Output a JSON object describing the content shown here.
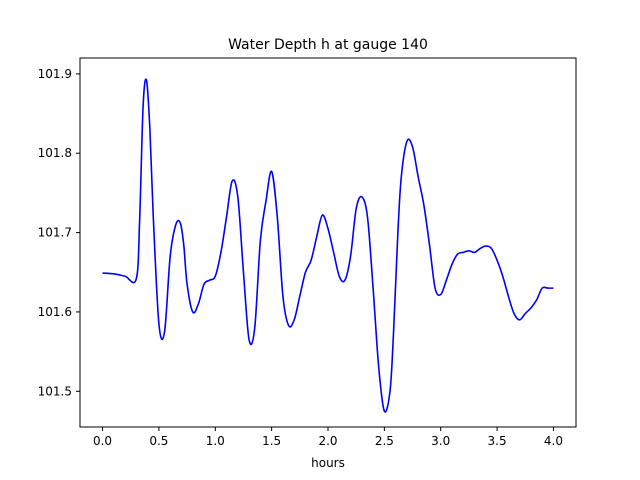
{
  "chart_data": {
    "type": "line",
    "title": "Water Depth h at gauge 140",
    "xlabel": "hours",
    "ylabel": "",
    "xlim": [
      -0.2,
      4.2
    ],
    "ylim": [
      101.455,
      101.92
    ],
    "xticks": [
      0.0,
      0.5,
      1.0,
      1.5,
      2.0,
      2.5,
      3.0,
      3.5,
      4.0
    ],
    "xtick_labels": [
      "0.0",
      "0.5",
      "1.0",
      "1.5",
      "2.0",
      "2.5",
      "3.0",
      "3.5",
      "4.0"
    ],
    "yticks": [
      101.5,
      101.6,
      101.7,
      101.8,
      101.9
    ],
    "ytick_labels": [
      "101.5",
      "101.6",
      "101.7",
      "101.8",
      "101.9"
    ],
    "grid": false,
    "series": [
      {
        "color": "#0000ff",
        "x": [
          0.0,
          0.1,
          0.2,
          0.3,
          0.33,
          0.36,
          0.39,
          0.42,
          0.45,
          0.5,
          0.55,
          0.6,
          0.65,
          0.69,
          0.72,
          0.75,
          0.8,
          0.85,
          0.9,
          0.95,
          1.0,
          1.05,
          1.1,
          1.15,
          1.2,
          1.25,
          1.3,
          1.35,
          1.4,
          1.45,
          1.5,
          1.55,
          1.6,
          1.65,
          1.7,
          1.75,
          1.8,
          1.85,
          1.9,
          1.95,
          2.0,
          2.05,
          2.1,
          2.15,
          2.2,
          2.25,
          2.3,
          2.35,
          2.4,
          2.45,
          2.5,
          2.55,
          2.58,
          2.62,
          2.65,
          2.7,
          2.75,
          2.8,
          2.85,
          2.9,
          2.95,
          3.0,
          3.05,
          3.1,
          3.15,
          3.2,
          3.25,
          3.3,
          3.35,
          3.4,
          3.45,
          3.5,
          3.55,
          3.6,
          3.65,
          3.7,
          3.75,
          3.8,
          3.85,
          3.9,
          3.95,
          4.0
        ],
        "y": [
          101.649,
          101.648,
          101.645,
          101.642,
          101.72,
          101.86,
          101.892,
          101.83,
          101.72,
          101.585,
          101.575,
          101.67,
          101.71,
          101.712,
          101.685,
          101.635,
          101.6,
          101.61,
          101.635,
          101.64,
          101.645,
          101.675,
          101.72,
          101.765,
          101.745,
          101.65,
          101.565,
          101.58,
          101.69,
          101.74,
          101.777,
          101.72,
          101.62,
          101.583,
          101.59,
          101.62,
          101.65,
          101.665,
          101.695,
          101.722,
          101.705,
          101.675,
          101.645,
          101.64,
          101.67,
          101.73,
          101.745,
          101.72,
          101.63,
          101.53,
          101.475,
          101.5,
          101.57,
          101.7,
          101.77,
          101.815,
          101.808,
          101.77,
          101.735,
          101.685,
          101.63,
          101.622,
          101.64,
          101.66,
          101.673,
          101.675,
          101.677,
          101.675,
          101.68,
          101.683,
          101.68,
          101.665,
          101.645,
          101.62,
          101.598,
          101.59,
          101.598,
          101.605,
          101.615,
          101.63,
          101.63,
          101.63
        ]
      }
    ]
  }
}
